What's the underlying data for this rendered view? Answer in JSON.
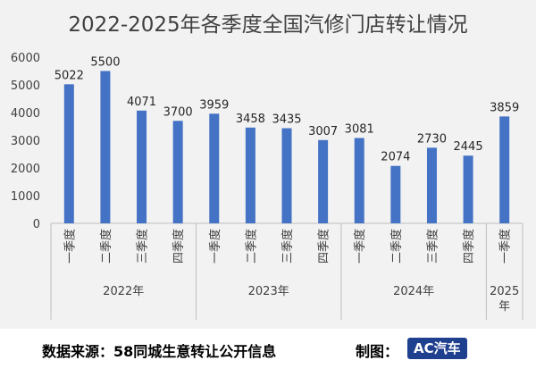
{
  "chart_data": {
    "type": "bar",
    "title": "2022-2025年各季度全国汽修门店转让情况",
    "categories": [
      "一季度",
      "二季度",
      "三季度",
      "四季度",
      "一季度",
      "二季度",
      "三季度",
      "四季度",
      "一季度",
      "二季度",
      "三季度",
      "四季度",
      "一季度"
    ],
    "groups": [
      {
        "label": "2022年",
        "count": 4
      },
      {
        "label": "2023年",
        "count": 4
      },
      {
        "label": "2024年",
        "count": 4
      },
      {
        "label": "2025年",
        "count": 1
      }
    ],
    "values": [
      5022,
      5500,
      4071,
      3700,
      3959,
      3458,
      3435,
      3007,
      3081,
      2074,
      2730,
      2445,
      3859
    ],
    "ylim": [
      0,
      6000
    ],
    "yticks": [
      0,
      1000,
      2000,
      3000,
      4000,
      5000,
      6000
    ],
    "xlabel": "",
    "ylabel": "",
    "bar_color": "#4472c4",
    "grid": false,
    "legend": "none"
  },
  "footer": {
    "source": "数据来源：58同城生意转让公开信息",
    "maker_label": "制图：",
    "logo_text": "AC汽车"
  }
}
